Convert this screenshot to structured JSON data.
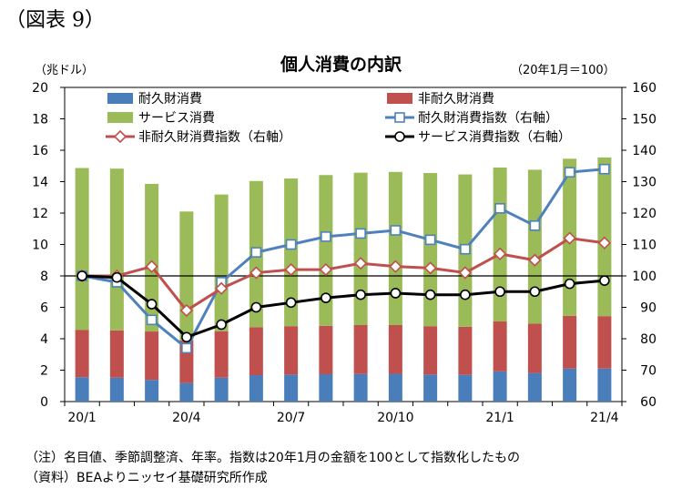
{
  "figure_label": "（図表 9）",
  "title": "個人消費の内訳",
  "left_unit": "（兆ドル）",
  "right_unit": "（20年1月＝100）",
  "note": "（注）名目値、季節調整済、年率。指数は20年1月の金額を100として指数化したもの",
  "source": "（資料）BEAよりニッセイ基礎研究所作成",
  "colors": {
    "durable": "#4a7ebb",
    "nondurable": "#c0504d",
    "services": "#9bbb59",
    "durable_index": "#4f81bd",
    "nondurable_index": "#c0504d",
    "services_index": "#000000"
  },
  "chart_data": {
    "type": "bar",
    "stacked": true,
    "categories": [
      "20/1",
      "20/2",
      "20/3",
      "20/4",
      "20/5",
      "20/6",
      "20/7",
      "20/8",
      "20/9",
      "20/10",
      "20/11",
      "20/12",
      "21/1",
      "21/2",
      "21/3",
      "21/4"
    ],
    "x_tick_labels": [
      "20/1",
      "",
      "",
      "20/4",
      "",
      "",
      "20/7",
      "",
      "",
      "20/10",
      "",
      "",
      "21/1",
      "",
      "",
      "21/4"
    ],
    "ylim": [
      0,
      20
    ],
    "y_ticks": [
      0,
      2,
      4,
      6,
      8,
      10,
      12,
      14,
      16,
      18,
      20
    ],
    "y2lim": [
      60,
      160
    ],
    "y2_ticks": [
      60,
      70,
      80,
      90,
      100,
      110,
      120,
      130,
      140,
      150,
      160
    ],
    "reference_line_y2": 100,
    "grid": false,
    "legend_position": "top",
    "series": [
      {
        "name": "耐久財消費",
        "kind": "bar",
        "axis": "left",
        "values": [
          1.55,
          1.52,
          1.38,
          1.18,
          1.52,
          1.68,
          1.72,
          1.74,
          1.75,
          1.77,
          1.72,
          1.7,
          1.92,
          1.82,
          2.1,
          2.1
        ]
      },
      {
        "name": "非耐久財消費",
        "kind": "bar",
        "axis": "left",
        "values": [
          3.02,
          3.01,
          3.08,
          2.72,
          2.96,
          3.06,
          3.08,
          3.08,
          3.12,
          3.1,
          3.08,
          3.06,
          3.18,
          3.14,
          3.36,
          3.34
        ]
      },
      {
        "name": "サービス消費",
        "kind": "bar",
        "axis": "left",
        "values": [
          10.3,
          10.3,
          9.4,
          8.2,
          8.7,
          9.3,
          9.4,
          9.6,
          9.7,
          9.75,
          9.75,
          9.7,
          9.8,
          9.8,
          10.0,
          10.1
        ]
      },
      {
        "name": "耐久財消費指数（右軸）",
        "kind": "line",
        "axis": "right",
        "marker": "square",
        "values": [
          100,
          98,
          86,
          77,
          98,
          107.5,
          110,
          112.5,
          113.5,
          114.5,
          111.5,
          108.5,
          121.5,
          116,
          133,
          134
        ]
      },
      {
        "name": "非耐久財消費指数（右軸）",
        "kind": "line",
        "axis": "right",
        "marker": "diamond",
        "values": [
          100,
          100,
          103,
          89,
          96,
          101,
          102,
          102,
          104,
          103,
          102.5,
          101,
          107,
          105,
          112,
          110.5
        ]
      },
      {
        "name": "サービス消費指数（右軸）",
        "kind": "line",
        "axis": "right",
        "marker": "circle",
        "values": [
          100,
          99.5,
          91,
          80.5,
          84.5,
          90,
          91.5,
          93,
          94,
          94.5,
          94,
          94,
          95,
          95,
          97.5,
          98.5
        ]
      }
    ]
  }
}
